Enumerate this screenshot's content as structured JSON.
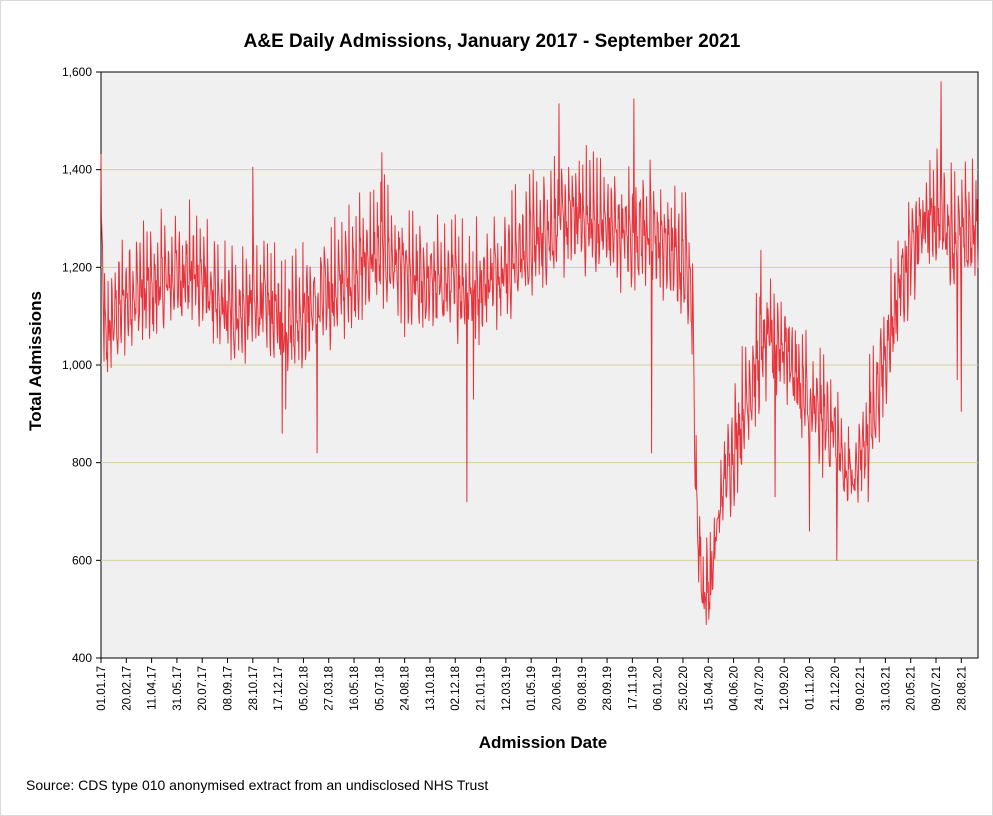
{
  "chart_data": {
    "type": "line",
    "title": "A&E Daily Admissions, January 2017 - September 2021",
    "xlabel": "Admission Date",
    "ylabel": "Total Admissions",
    "ylim": [
      400,
      1600
    ],
    "yticks": [
      "400",
      "600",
      "800",
      "1,000",
      "1,200",
      "1,400",
      "1,600"
    ],
    "xlim": [
      "2017-01-01",
      "2021-09-30"
    ],
    "xticks": [
      "01.01.17",
      "20.02.17",
      "11.04.17",
      "31.05.17",
      "20.07.17",
      "08.09.17",
      "28.10.17",
      "17.12.17",
      "05.02.18",
      "27.03.18",
      "16.05.18",
      "05.07.18",
      "24.08.18",
      "13.10.18",
      "02.12.18",
      "21.01.19",
      "12.03.19",
      "01.05.19",
      "20.06.19",
      "09.08.19",
      "28.09.19",
      "17.11.19",
      "06.01.20",
      "25.02.20",
      "15.04.20",
      "04.06.20",
      "24.07.20",
      "12.09.20",
      "01.11.20",
      "21.12.20",
      "09.02.21",
      "31.03.21",
      "20.05.21",
      "09.07.21",
      "28.08.21"
    ],
    "grid": "horizontal",
    "legend": "none",
    "series_color": "#e8323a",
    "weekly_amplitude_note_free": true,
    "series": [
      {
        "trend": [
          [
            "2017-01-01",
            1320
          ],
          [
            "2017-01-08",
            1050
          ],
          [
            "2017-02-01",
            1110
          ],
          [
            "2017-03-01",
            1150
          ],
          [
            "2017-04-15",
            1160
          ],
          [
            "2017-06-01",
            1190
          ],
          [
            "2017-07-15",
            1190
          ],
          [
            "2017-08-20",
            1120
          ],
          [
            "2017-10-01",
            1110
          ],
          [
            "2017-11-15",
            1130
          ],
          [
            "2017-12-20",
            1100
          ],
          [
            "2018-02-01",
            1110
          ],
          [
            "2018-04-01",
            1150
          ],
          [
            "2018-06-01",
            1210
          ],
          [
            "2018-07-15",
            1240
          ],
          [
            "2018-09-01",
            1170
          ],
          [
            "2018-10-15",
            1170
          ],
          [
            "2018-12-01",
            1170
          ],
          [
            "2019-01-15",
            1160
          ],
          [
            "2019-03-01",
            1200
          ],
          [
            "2019-05-01",
            1250
          ],
          [
            "2019-06-15",
            1290
          ],
          [
            "2019-08-01",
            1310
          ],
          [
            "2019-09-15",
            1290
          ],
          [
            "2019-11-01",
            1270
          ],
          [
            "2019-12-15",
            1280
          ],
          [
            "2020-01-15",
            1250
          ],
          [
            "2020-02-15",
            1220
          ],
          [
            "2020-03-10",
            1200
          ],
          [
            "2020-03-15",
            1100
          ],
          [
            "2020-03-23",
            700
          ],
          [
            "2020-04-05",
            530
          ],
          [
            "2020-04-20",
            560
          ],
          [
            "2020-05-15",
            760
          ],
          [
            "2020-06-15",
            870
          ],
          [
            "2020-07-15",
            990
          ],
          [
            "2020-08-15",
            1060
          ],
          [
            "2020-09-15",
            1040
          ],
          [
            "2020-10-15",
            950
          ],
          [
            "2020-11-15",
            900
          ],
          [
            "2020-12-15",
            880
          ],
          [
            "2021-01-10",
            770
          ],
          [
            "2021-02-01",
            790
          ],
          [
            "2021-03-01",
            880
          ],
          [
            "2021-04-01",
            1030
          ],
          [
            "2021-05-01",
            1180
          ],
          [
            "2021-06-15",
            1290
          ],
          [
            "2021-07-15",
            1320
          ],
          [
            "2021-08-15",
            1260
          ],
          [
            "2021-09-30",
            1280
          ]
        ],
        "spikes": [
          [
            "2017-12-25",
            860
          ],
          [
            "2018-01-01",
            910
          ],
          [
            "2018-03-04",
            820
          ],
          [
            "2018-12-25",
            720
          ],
          [
            "2019-01-07",
            930
          ],
          [
            "2019-12-25",
            820
          ],
          [
            "2020-12-25",
            600
          ],
          [
            "2020-08-25",
            730
          ],
          [
            "2020-11-01",
            660
          ],
          [
            "2021-02-25",
            720
          ],
          [
            "2021-08-28",
            905
          ],
          [
            "2021-08-20",
            970
          ]
        ],
        "peaks": [
          [
            "2017-10-28",
            1405
          ],
          [
            "2018-07-10",
            1435
          ],
          [
            "2019-06-25",
            1535
          ],
          [
            "2019-11-20",
            1545
          ],
          [
            "2020-07-28",
            1235
          ],
          [
            "2021-07-19",
            1580
          ]
        ]
      }
    ]
  },
  "footer": {
    "source": "Source: CDS type 010 anonymised extract from an undisclosed NHS Trust"
  }
}
